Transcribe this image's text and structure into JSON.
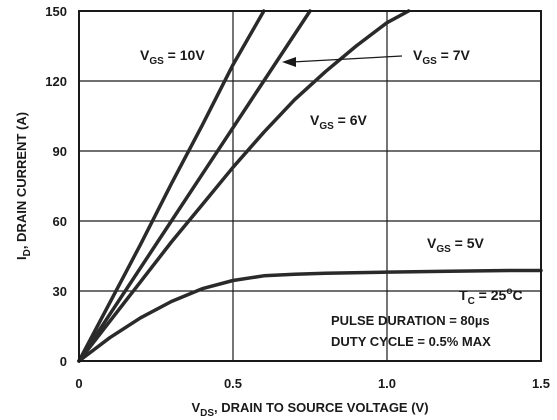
{
  "chart_data": {
    "type": "line",
    "xlabel": {
      "main": "V",
      "sub": "DS",
      "rest": ", DRAIN TO SOURCE VOLTAGE (V)"
    },
    "ylabel": {
      "main": "I",
      "sub": "D",
      "rest": ", DRAIN CURRENT (A)"
    },
    "xlim": [
      0,
      1.5
    ],
    "ylim": [
      0,
      150
    ],
    "xticks": [
      0,
      0.5,
      1.0,
      1.5
    ],
    "xtick_labels": [
      "0",
      "0.5",
      "1.0",
      "1.5"
    ],
    "yticks": [
      0,
      30,
      60,
      90,
      120,
      150
    ],
    "ytick_labels": [
      "0",
      "30",
      "60",
      "90",
      "120",
      "150"
    ],
    "grid": true,
    "series": [
      {
        "name_main": "V",
        "name_sub": "GS",
        "name_rest": " = 10V",
        "x": [
          0,
          0.1,
          0.2,
          0.3,
          0.4,
          0.5,
          0.6
        ],
        "y": [
          0,
          25,
          50,
          76,
          101,
          127,
          150
        ]
      },
      {
        "name_main": "V",
        "name_sub": "GS",
        "name_rest": " = 7V",
        "x": [
          0,
          0.1,
          0.2,
          0.3,
          0.4,
          0.5,
          0.6,
          0.75
        ],
        "y": [
          0,
          20,
          40,
          60,
          80,
          100,
          120,
          150
        ]
      },
      {
        "name_main": "V",
        "name_sub": "GS",
        "name_rest": " = 6V",
        "x": [
          0,
          0.1,
          0.2,
          0.3,
          0.4,
          0.5,
          0.6,
          0.7,
          0.8,
          0.9,
          1.0,
          1.07
        ],
        "y": [
          0,
          17,
          34,
          51,
          67,
          83,
          98,
          112,
          124,
          135,
          145,
          150
        ]
      },
      {
        "name_main": "V",
        "name_sub": "GS",
        "name_rest": " = 5V",
        "x": [
          0,
          0.1,
          0.2,
          0.3,
          0.4,
          0.5,
          0.6,
          0.7,
          0.8,
          1.0,
          1.2,
          1.4,
          1.5
        ],
        "y": [
          0,
          10,
          18.5,
          25.5,
          31,
          34.5,
          36.5,
          37.2,
          37.6,
          38.1,
          38.5,
          38.8,
          38.8
        ]
      }
    ],
    "annotations": {
      "tc": {
        "main": "T",
        "sub": "C",
        "rest": " = 25",
        "sup": "o",
        "tail": "C"
      },
      "pulse": "PULSE DURATION = 80µs",
      "duty": "DUTY CYCLE = 0.5% MAX"
    },
    "colors": {
      "line": "#2a2a2a",
      "grid": "#1a1a1a",
      "text": "#1a1a1a"
    }
  }
}
